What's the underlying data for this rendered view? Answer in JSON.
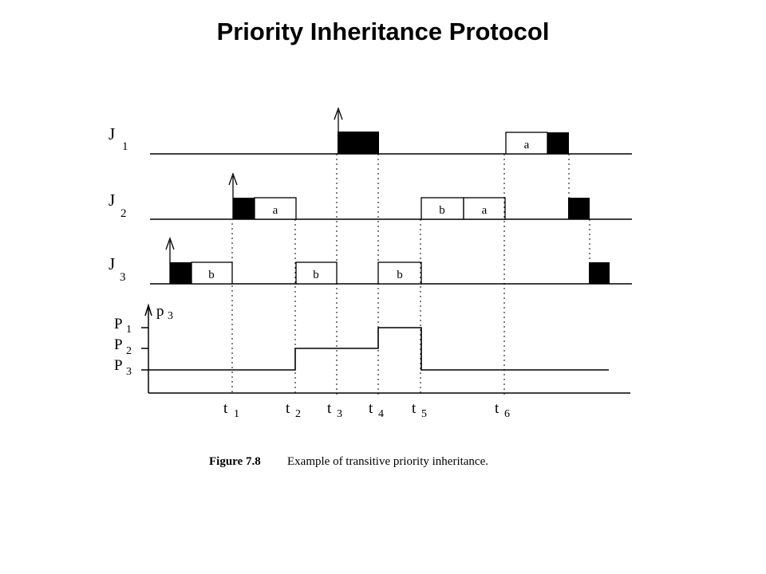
{
  "title": "Priority Inheritance Protocol",
  "figure": {
    "caption_label": "Figure 7.8",
    "caption_text": "Example of transitive priority inheritance.",
    "jobs": [
      {
        "name": "J",
        "sub": "1"
      },
      {
        "name": "J",
        "sub": "2"
      },
      {
        "name": "J",
        "sub": "3"
      }
    ],
    "priority_axis": {
      "label": "p",
      "label_sub": "3",
      "levels": [
        {
          "name": "P",
          "sub": "1"
        },
        {
          "name": "P",
          "sub": "2"
        },
        {
          "name": "P",
          "sub": "3"
        }
      ]
    },
    "time_marks": [
      {
        "name": "t",
        "sub": "1"
      },
      {
        "name": "t",
        "sub": "2"
      },
      {
        "name": "t",
        "sub": "3"
      },
      {
        "name": "t",
        "sub": "4"
      },
      {
        "name": "t",
        "sub": "5"
      },
      {
        "name": "t",
        "sub": "6"
      }
    ],
    "section_labels": {
      "a": "a",
      "b": "b"
    }
  }
}
